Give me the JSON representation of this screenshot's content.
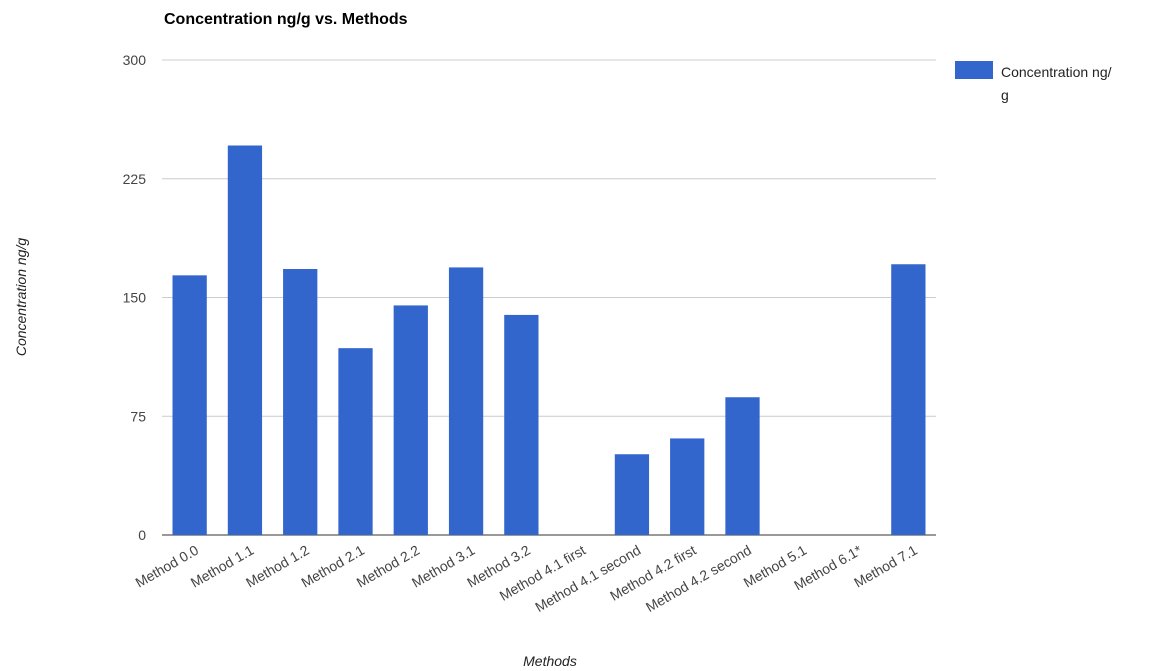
{
  "chart_data": {
    "type": "bar",
    "title": "Concentration ng/g vs. Methods",
    "xlabel": "Methods",
    "ylabel": "Concentration ng/g",
    "ylim": [
      0,
      300
    ],
    "yticks": [
      0,
      75,
      150,
      225,
      300
    ],
    "grid": true,
    "legend_position": "right",
    "categories": [
      "Method 0.0",
      "Method 1.1",
      "Method 1.2",
      "Method 2.1",
      "Method 2.2",
      "Method 3.1",
      "Method 3.2",
      "Method 4.1 first",
      "Method 4.1 second",
      "Method 4.2 first",
      "Method 4.2 second",
      "Method 5.1",
      "Method 6.1*",
      "Method 7.1"
    ],
    "series": [
      {
        "name": "Concentration ng/g",
        "color": "#3366cc",
        "values": [
          164,
          246,
          168,
          118,
          145,
          169,
          139,
          0,
          51,
          61,
          87,
          0,
          0,
          171
        ]
      }
    ]
  }
}
